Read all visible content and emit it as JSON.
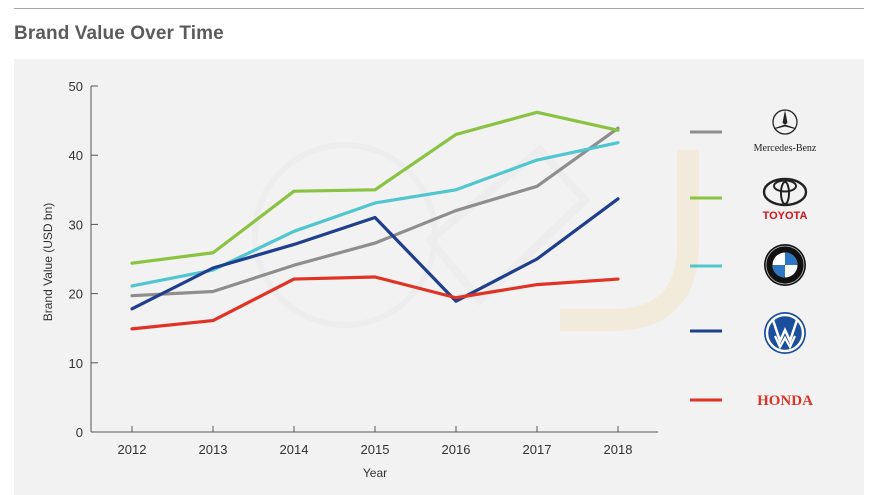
{
  "title": "Brand Value Over Time",
  "chart_data": {
    "type": "line",
    "title": "Brand Value Over Time",
    "xlabel": "Year",
    "ylabel": "Brand Value (USD bn)",
    "x": [
      2012,
      2013,
      2014,
      2015,
      2016,
      2017,
      2018
    ],
    "ylim": [
      0,
      50
    ],
    "yticks": [
      0,
      10,
      20,
      30,
      40,
      50
    ],
    "grid": false,
    "legend": "right",
    "series": [
      {
        "name": "Mercedes-Benz",
        "color": "#8e8e8e",
        "values": [
          19.7,
          20.3,
          24.1,
          27.3,
          32.0,
          35.5,
          43.9
        ]
      },
      {
        "name": "TOYOTA",
        "color": "#8ac341",
        "values": [
          24.4,
          25.9,
          34.8,
          35.0,
          43.0,
          46.2,
          43.6
        ]
      },
      {
        "name": "",
        "color": "#4fc6d0",
        "values": [
          21.1,
          23.4,
          29.0,
          33.1,
          35.0,
          39.3,
          41.8
        ]
      },
      {
        "name": "",
        "color": "#1f3e8b",
        "values": [
          17.8,
          23.7,
          27.1,
          31.0,
          18.9,
          25.0,
          33.7
        ]
      },
      {
        "name": "HONDA",
        "color": "#e03326",
        "values": [
          14.9,
          16.1,
          22.1,
          22.4,
          19.4,
          21.3,
          22.1
        ]
      }
    ]
  }
}
